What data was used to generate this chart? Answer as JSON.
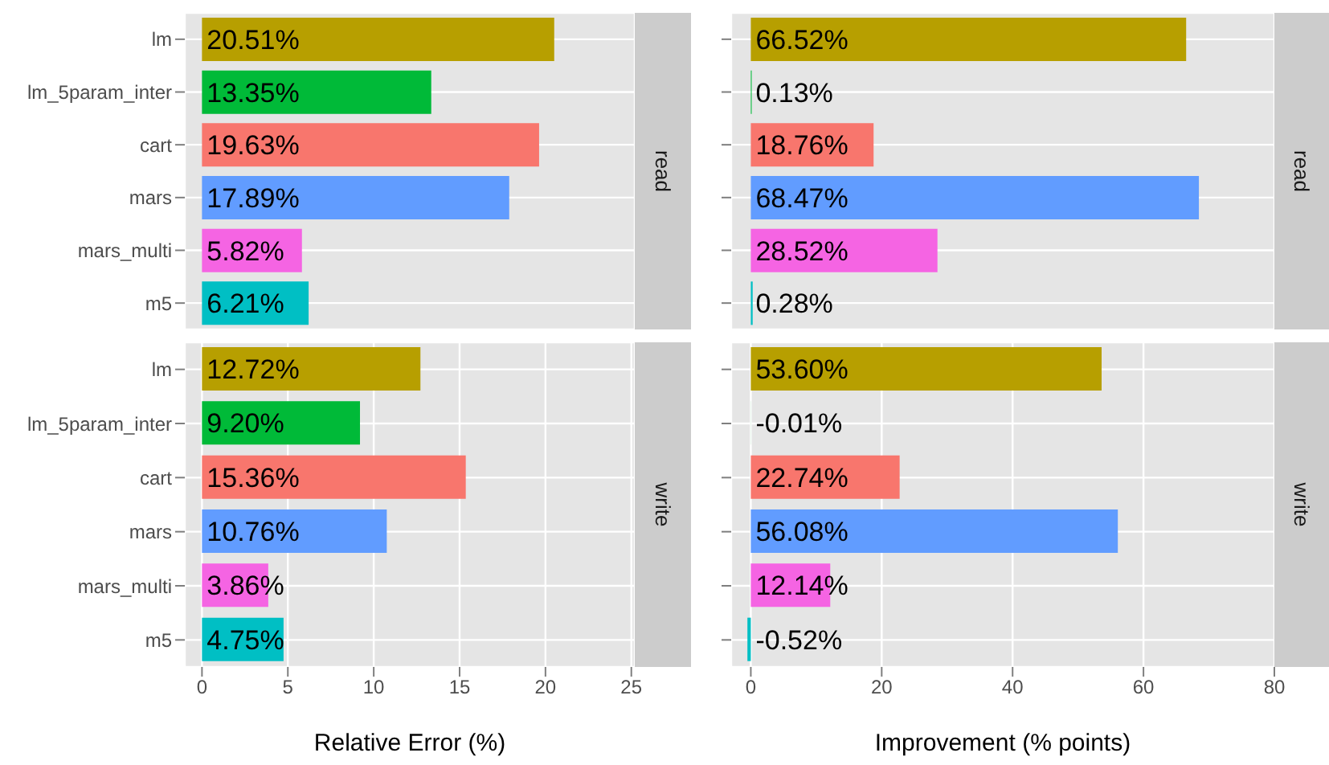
{
  "chart_data": [
    {
      "type": "bar",
      "orientation": "horizontal",
      "annotations": [
        "read"
      ],
      "categories": [
        "lm",
        "lm_5param_inter",
        "cart",
        "mars",
        "mars_multi",
        "m5"
      ],
      "values": [
        20.51,
        13.35,
        19.63,
        17.89,
        5.82,
        6.21
      ],
      "value_labels": [
        "20.51%",
        "13.35%",
        "19.63%",
        "17.89%",
        "5.82%",
        "6.21%"
      ],
      "colors": [
        "#b79f00",
        "#00ba38",
        "#f8766d",
        "#619cff",
        "#f564e3",
        "#00bfc4"
      ],
      "xlim": [
        -1,
        25.2
      ],
      "xticks": [
        0,
        5,
        10,
        15,
        20,
        25
      ],
      "grid": true,
      "tick_labels": "y"
    },
    {
      "type": "bar",
      "orientation": "horizontal",
      "annotations": [
        "read"
      ],
      "categories": [
        null,
        null,
        null,
        null,
        null,
        null
      ],
      "values": [
        66.52,
        0.13,
        18.76,
        68.47,
        28.52,
        0.28
      ],
      "value_labels": [
        "66.52%",
        "0.13%",
        "18.76%",
        "68.47%",
        "28.52%",
        "0.28%"
      ],
      "colors": [
        "#b79f00",
        "#00ba38",
        "#f8766d",
        "#619cff",
        "#f564e3",
        "#00bfc4"
      ],
      "xlim": [
        -3,
        80
      ],
      "xticks": [
        0,
        20,
        40,
        60,
        80
      ],
      "grid": true,
      "tick_labels": false
    },
    {
      "type": "bar",
      "orientation": "horizontal",
      "annotations": [
        "write"
      ],
      "xlabel": "Relative Error (%)",
      "categories": [
        "lm",
        "lm_5param_inter",
        "cart",
        "mars",
        "mars_multi",
        "m5"
      ],
      "values": [
        12.72,
        9.2,
        15.36,
        10.76,
        3.86,
        4.75
      ],
      "value_labels": [
        "12.72%",
        "9.20%",
        "15.36%",
        "10.76%",
        "3.86%",
        "4.75%"
      ],
      "colors": [
        "#b79f00",
        "#00ba38",
        "#f8766d",
        "#619cff",
        "#f564e3",
        "#00bfc4"
      ],
      "xlim": [
        -1,
        25.2
      ],
      "xticks": [
        0,
        5,
        10,
        15,
        20,
        25
      ],
      "grid": true
    },
    {
      "type": "bar",
      "orientation": "horizontal",
      "annotations": [
        "write"
      ],
      "xlabel": "Improvement (% points)",
      "categories": [
        null,
        null,
        null,
        null,
        null,
        null
      ],
      "values": [
        53.6,
        -0.01,
        22.74,
        56.08,
        12.14,
        -0.52
      ],
      "value_labels": [
        "53.60%",
        "-0.01%",
        "22.74%",
        "56.08%",
        "12.14%",
        "-0.52%"
      ],
      "colors": [
        "#b79f00",
        "#00ba38",
        "#f8766d",
        "#619cff",
        "#f564e3",
        "#00bfc4"
      ],
      "xlim": [
        -3,
        80
      ],
      "xticks": [
        0,
        20,
        40,
        60,
        80
      ],
      "grid": true,
      "tick_labels": "x"
    }
  ]
}
